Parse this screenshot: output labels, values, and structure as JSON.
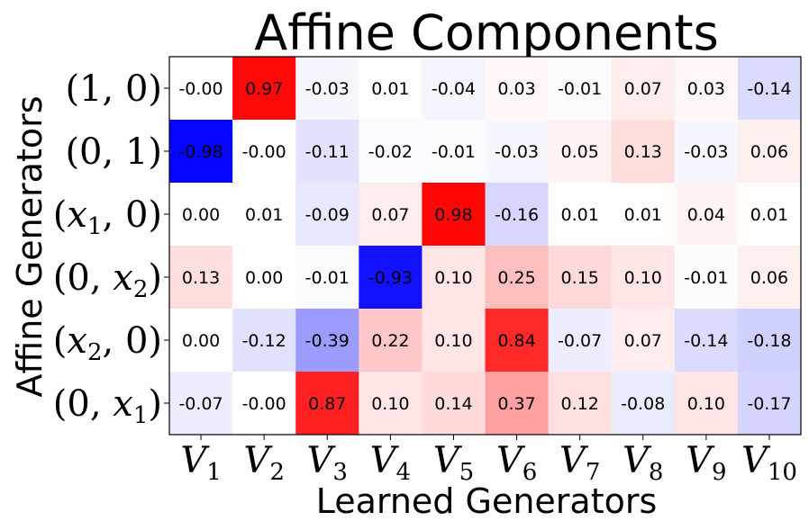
{
  "chart_data": {
    "type": "heatmap",
    "title": "Affine Components",
    "xlabel": "Learned Generators",
    "ylabel": "Affine Generators",
    "columns": [
      {
        "base": "V",
        "sub": "1"
      },
      {
        "base": "V",
        "sub": "2"
      },
      {
        "base": "V",
        "sub": "3"
      },
      {
        "base": "V",
        "sub": "4"
      },
      {
        "base": "V",
        "sub": "5"
      },
      {
        "base": "V",
        "sub": "6"
      },
      {
        "base": "V",
        "sub": "7"
      },
      {
        "base": "V",
        "sub": "8"
      },
      {
        "base": "V",
        "sub": "9"
      },
      {
        "base": "V",
        "sub": "10"
      }
    ],
    "rows": [
      [
        {
          "t": "(1, 0)"
        }
      ],
      [
        {
          "t": "(0, 1)"
        }
      ],
      [
        {
          "t": "("
        },
        {
          "t": "x",
          "it": true
        },
        {
          "t": "1",
          "sub": true
        },
        {
          "t": ", 0)"
        }
      ],
      [
        {
          "t": "(0, "
        },
        {
          "t": "x",
          "it": true
        },
        {
          "t": "2",
          "sub": true
        },
        {
          "t": ")"
        }
      ],
      [
        {
          "t": "("
        },
        {
          "t": "x",
          "it": true
        },
        {
          "t": "2",
          "sub": true
        },
        {
          "t": ", 0)"
        }
      ],
      [
        {
          "t": "(0, "
        },
        {
          "t": "x",
          "it": true
        },
        {
          "t": "1",
          "sub": true
        },
        {
          "t": ")"
        }
      ]
    ],
    "values": [
      [
        -0.0,
        0.97,
        -0.03,
        0.01,
        -0.04,
        0.03,
        -0.01,
        0.07,
        0.03,
        -0.14
      ],
      [
        -0.98,
        -0.0,
        -0.11,
        -0.02,
        -0.01,
        -0.03,
        0.05,
        0.13,
        -0.03,
        0.06
      ],
      [
        0.0,
        0.01,
        -0.09,
        0.07,
        0.98,
        -0.16,
        0.01,
        0.01,
        0.04,
        0.01
      ],
      [
        0.13,
        0.0,
        -0.01,
        -0.93,
        0.1,
        0.25,
        0.15,
        0.1,
        -0.01,
        0.06
      ],
      [
        0.0,
        -0.12,
        -0.39,
        0.22,
        0.1,
        0.84,
        -0.07,
        0.07,
        -0.14,
        -0.18
      ],
      [
        -0.07,
        -0.0,
        0.87,
        0.1,
        0.14,
        0.37,
        0.12,
        -0.08,
        0.1,
        -0.17
      ]
    ],
    "labels": [
      [
        "-0.00",
        "0.97",
        "-0.03",
        "0.01",
        "-0.04",
        "0.03",
        "-0.01",
        "0.07",
        "0.03",
        "-0.14"
      ],
      [
        "-0.98",
        "-0.00",
        "-0.11",
        "-0.02",
        "-0.01",
        "-0.03",
        "0.05",
        "0.13",
        "-0.03",
        "0.06"
      ],
      [
        "0.00",
        "0.01",
        "-0.09",
        "0.07",
        "0.98",
        "-0.16",
        "0.01",
        "0.01",
        "0.04",
        "0.01"
      ],
      [
        "0.13",
        "0.00",
        "-0.01",
        "-0.93",
        "0.10",
        "0.25",
        "0.15",
        "0.10",
        "-0.01",
        "0.06"
      ],
      [
        "0.00",
        "-0.12",
        "-0.39",
        "0.22",
        "0.10",
        "0.84",
        "-0.07",
        "0.07",
        "-0.14",
        "-0.18"
      ],
      [
        "-0.07",
        "-0.00",
        "0.87",
        "0.10",
        "0.14",
        "0.37",
        "0.12",
        "-0.08",
        "0.10",
        "-0.17"
      ]
    ],
    "colormap": "bwr",
    "vmin": -1,
    "vmax": 1,
    "colors": {
      "negative": "#0000ff",
      "zero": "#ffffff",
      "positive": "#ff0000"
    }
  }
}
